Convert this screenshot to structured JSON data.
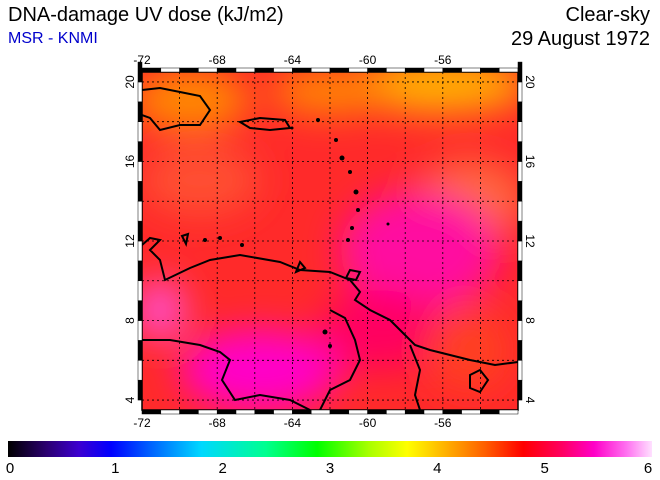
{
  "header": {
    "title": "DNA-damage UV dose (kJ/m2)",
    "subtitle": "MSR - KNMI",
    "mode": "Clear-sky",
    "date": "29 August 1972"
  },
  "map": {
    "lon_ticks": [
      "-72",
      "-68",
      "-64",
      "-60",
      "-56"
    ],
    "lat_ticks": [
      "20",
      "16",
      "12",
      "8",
      "4"
    ],
    "lon_range": [
      -72,
      -52
    ],
    "lat_range": [
      3.5,
      20.5
    ]
  },
  "colorbar": {
    "labels": [
      "0",
      "1",
      "2",
      "3",
      "4",
      "5",
      "6"
    ],
    "range": [
      0,
      6
    ]
  },
  "colors": {
    "subtitle": "#0000cc",
    "field_base": "#ff2a2a",
    "field_high": "#ff00c8",
    "field_low": "#ff8a00"
  }
}
